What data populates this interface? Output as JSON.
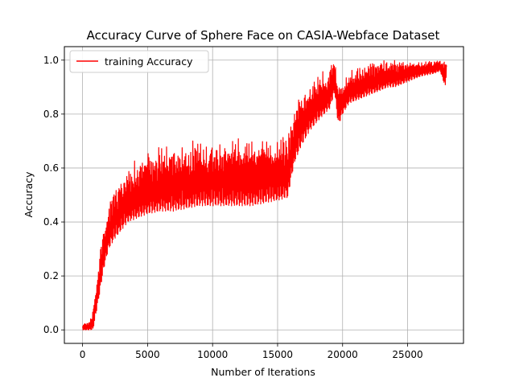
{
  "chart_data": {
    "type": "line",
    "title": "Accuracy Curve of Sphere Face on CASIA-Webface Dataset",
    "xlabel": "Number of Iterations",
    "ylabel": "Accuracy",
    "xlim": [
      -1400,
      29300
    ],
    "ylim": [
      -0.05,
      1.05
    ],
    "xticks": [
      0,
      5000,
      10000,
      15000,
      20000,
      25000
    ],
    "xtick_labels": [
      "0",
      "5000",
      "10000",
      "15000",
      "20000",
      "25000"
    ],
    "yticks": [
      0.0,
      0.2,
      0.4,
      0.6,
      0.8,
      1.0
    ],
    "ytick_labels": [
      "0.0",
      "0.2",
      "0.4",
      "0.6",
      "0.8",
      "1.0"
    ],
    "grid": true,
    "legend_position": "top-left",
    "series": [
      {
        "name": "training Accuracy",
        "color": "#ff0000",
        "description": "noisy per-iteration accuracy; sampled trend with low/high envelope",
        "x": [
          0,
          500,
          800,
          1000,
          1300,
          1600,
          2000,
          2500,
          3000,
          3500,
          4000,
          5000,
          6000,
          7000,
          8000,
          9000,
          10000,
          11000,
          12000,
          13000,
          14000,
          15000,
          15800,
          16000,
          16300,
          16800,
          17500,
          18200,
          19000,
          19400,
          19550,
          19700,
          20000,
          20500,
          21500,
          22000,
          22500,
          23000,
          23500,
          24000,
          25000,
          26000,
          27000,
          27500,
          27900,
          28000
        ],
        "low": [
          0.0,
          0.0,
          0.0,
          0.05,
          0.13,
          0.22,
          0.3,
          0.34,
          0.37,
          0.4,
          0.41,
          0.43,
          0.44,
          0.44,
          0.45,
          0.46,
          0.46,
          0.46,
          0.46,
          0.46,
          0.47,
          0.48,
          0.49,
          0.55,
          0.62,
          0.68,
          0.74,
          0.78,
          0.82,
          0.88,
          0.8,
          0.76,
          0.8,
          0.84,
          0.86,
          0.87,
          0.88,
          0.89,
          0.9,
          0.9,
          0.92,
          0.94,
          0.95,
          0.96,
          0.9,
          0.96
        ],
        "high": [
          0.02,
          0.03,
          0.08,
          0.16,
          0.28,
          0.38,
          0.47,
          0.53,
          0.58,
          0.61,
          0.63,
          0.66,
          0.68,
          0.69,
          0.7,
          0.71,
          0.71,
          0.72,
          0.73,
          0.73,
          0.72,
          0.72,
          0.72,
          0.78,
          0.83,
          0.88,
          0.92,
          0.95,
          0.98,
          1.0,
          0.96,
          0.91,
          0.93,
          0.96,
          0.98,
          1.0,
          1.0,
          1.0,
          1.0,
          1.0,
          1.0,
          1.0,
          1.0,
          1.0,
          1.0,
          1.0
        ]
      }
    ]
  }
}
